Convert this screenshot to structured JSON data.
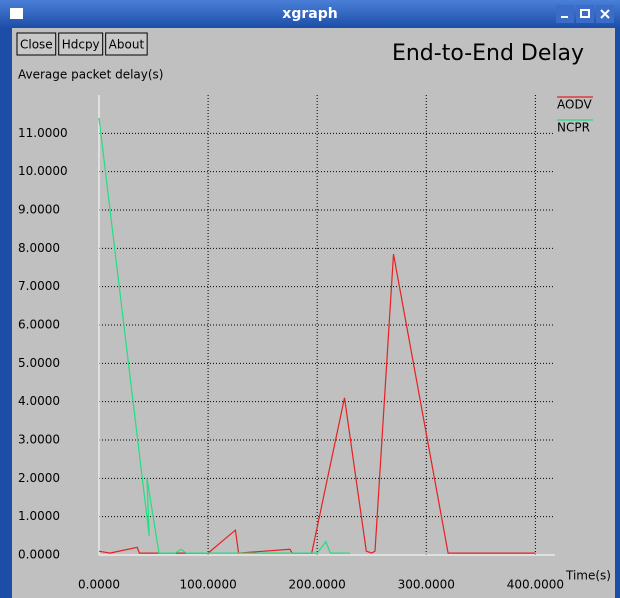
{
  "window": {
    "title": "xgraph",
    "buttons": [
      "Close",
      "Hdcpy",
      "About"
    ]
  },
  "chart_data": {
    "type": "line",
    "title": "End-to-End Delay",
    "y_label": "Average packet delay(s)",
    "x_label": "Time(s)",
    "xlim": [
      0,
      418
    ],
    "ylim": [
      0,
      12
    ],
    "xticks": [
      {
        "value": 0,
        "label": "0.0000"
      },
      {
        "value": 100,
        "label": "100.0000"
      },
      {
        "value": 200,
        "label": "200.0000"
      },
      {
        "value": 300,
        "label": "300.0000"
      },
      {
        "value": 400,
        "label": "400.0000"
      }
    ],
    "yticks": [
      {
        "value": 0,
        "label": "0.0000"
      },
      {
        "value": 1,
        "label": "1.0000"
      },
      {
        "value": 2,
        "label": "2.0000"
      },
      {
        "value": 3,
        "label": "3.0000"
      },
      {
        "value": 4,
        "label": "4.0000"
      },
      {
        "value": 5,
        "label": "5.0000"
      },
      {
        "value": 6,
        "label": "6.0000"
      },
      {
        "value": 7,
        "label": "7.0000"
      },
      {
        "value": 8,
        "label": "8.0000"
      },
      {
        "value": 9,
        "label": "9.0000"
      },
      {
        "value": 10,
        "label": "10.0000"
      },
      {
        "value": 11,
        "label": "11.0000"
      }
    ],
    "grid": true,
    "legend": "upper right",
    "series": [
      {
        "name": "AODV",
        "color": "#e82020",
        "x": [
          0,
          10,
          35,
          37,
          100,
          125,
          128,
          175,
          177,
          195,
          225,
          245,
          250,
          253,
          270,
          320,
          400
        ],
        "values": [
          0.1,
          0.05,
          0.2,
          0.05,
          0.05,
          0.65,
          0.05,
          0.15,
          0.05,
          0.05,
          4.1,
          0.1,
          0.05,
          0.1,
          7.85,
          0.05,
          0.05
        ]
      },
      {
        "name": "NCPR",
        "color": "#20e080",
        "x": [
          0,
          46,
          44,
          55,
          70,
          75,
          80,
          200,
          208,
          212,
          230
        ],
        "values": [
          11.4,
          0.5,
          2.0,
          0.05,
          0.05,
          0.15,
          0.05,
          0.05,
          0.35,
          0.05,
          0.05
        ]
      }
    ]
  }
}
